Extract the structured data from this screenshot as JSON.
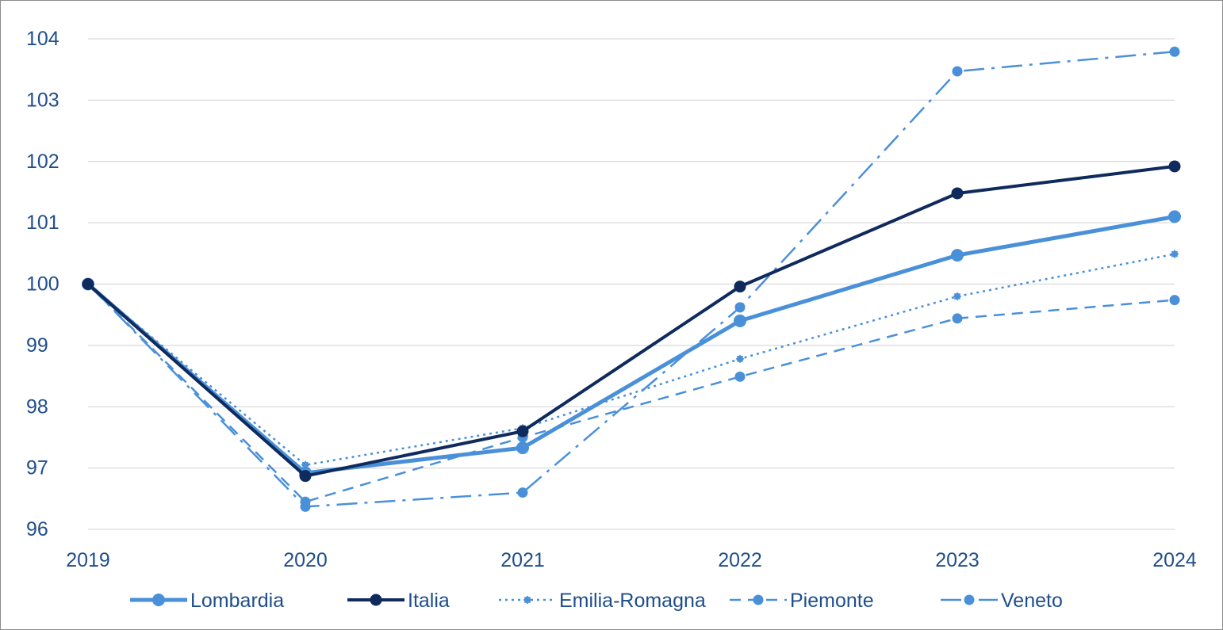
{
  "chart_data": {
    "type": "line",
    "title": "",
    "xlabel": "",
    "ylabel": "",
    "x": [
      "2019",
      "2020",
      "2021",
      "2022",
      "2023",
      "2024"
    ],
    "ylim": [
      96,
      104
    ],
    "yticks": [
      96,
      97,
      98,
      99,
      100,
      101,
      102,
      103,
      104
    ],
    "grid": true,
    "legend_position": "bottom",
    "series": [
      {
        "name": "Lombardia",
        "values": [
          100,
          96.92,
          97.33,
          99.4,
          100.47,
          101.1
        ],
        "color": "#4a90d9",
        "style": "solid-thick",
        "marker": "circle"
      },
      {
        "name": "Italia",
        "values": [
          100,
          96.87,
          97.6,
          99.96,
          101.48,
          101.92
        ],
        "color": "#0f2a5c",
        "style": "solid",
        "marker": "circle"
      },
      {
        "name": "Emilia-Romagna",
        "values": [
          100,
          97.05,
          97.65,
          98.78,
          99.8,
          100.49
        ],
        "color": "#4a90d9",
        "style": "dotted",
        "marker": "star"
      },
      {
        "name": "Piemonte",
        "values": [
          100,
          96.45,
          97.5,
          98.49,
          99.44,
          99.74
        ],
        "color": "#4a90d9",
        "style": "dashed",
        "marker": "circle"
      },
      {
        "name": "Veneto",
        "values": [
          100,
          96.37,
          96.6,
          99.62,
          103.47,
          103.79
        ],
        "color": "#4a90d9",
        "style": "dash-dot",
        "marker": "circle"
      }
    ],
    "colors": {
      "axis_text": "#1f4e8c",
      "grid": "#d9d9d9",
      "frame": "#8c8c8c"
    }
  }
}
